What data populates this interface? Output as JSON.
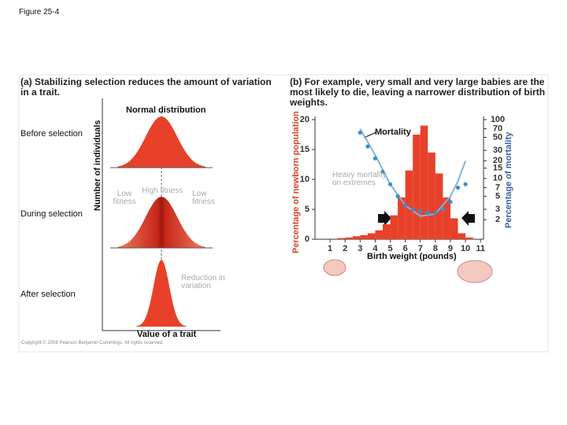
{
  "header": {
    "title": "Figure 25-4"
  },
  "panel_a": {
    "caption": "(a) Stabilizing selection reduces the amount of variation in a trait.",
    "normal_label": "Normal distribution",
    "stages": [
      "Before selection",
      "During selection",
      "After selection"
    ],
    "fitness": [
      "Low fitness",
      "High fitness",
      "Low fitness"
    ],
    "reduction": "Reduction in variation",
    "ylabel": "Number of individuals",
    "xlabel": "Value of a trait",
    "copyright": "Copyright © 2008 Pearson Benjamin Cummings. All rights reserved."
  },
  "chart_data": {
    "type": "histogram",
    "title": "(b) For example, very small and very large babies are the most likely to die, leaving a narrower distribution of birth weights.",
    "xlabel": "Birth weight (pounds)",
    "ylabel": "Percentage of newborn population",
    "y2label": "Percentage of mortality",
    "annotations": [
      "Mortality",
      "Heavy mortality on extremes"
    ],
    "bins": [
      1.5,
      2,
      2.5,
      3,
      3.5,
      4,
      4.5,
      5,
      5.5,
      6,
      6.5,
      7,
      7.5,
      8,
      8.5,
      9,
      9.5,
      10,
      10.5
    ],
    "values": [
      0.2,
      0.3,
      0.5,
      0.7,
      1,
      1.5,
      2.5,
      4,
      7,
      11.5,
      17.5,
      19,
      14.5,
      11,
      7,
      3.5,
      1,
      0.3
    ],
    "color": "#e8412a",
    "xlim": [
      0,
      11.2
    ],
    "xticks": [
      1,
      2,
      3,
      4,
      5,
      6,
      7,
      8,
      9,
      10,
      11
    ],
    "ylim": [
      0,
      20
    ],
    "yticks": [
      0,
      5,
      10,
      15,
      20
    ],
    "y2lim": [
      0.93,
      100
    ],
    "y2scale": "log",
    "y2ticks": [
      2,
      3,
      5,
      7,
      10,
      15,
      20,
      30,
      50,
      70,
      100
    ],
    "points": {
      "axis": "y2",
      "color": "#3a8fd0",
      "x": [
        3,
        3.5,
        4,
        4.5,
        5,
        5.5,
        6,
        6.5,
        7,
        7.5,
        8,
        8.5,
        9,
        9.5,
        10
      ],
      "values": [
        60,
        35,
        22,
        13,
        8,
        5,
        3.5,
        3,
        2.8,
        2.6,
        2.6,
        3,
        4,
        7,
        8
      ]
    },
    "curve": {
      "axis": "y2",
      "color": "#7fb3dc",
      "x": [
        3,
        4,
        5,
        6,
        7,
        8,
        9,
        9.5,
        10
      ],
      "values": [
        70,
        25,
        8,
        3.5,
        2.3,
        2.5,
        5,
        9,
        20
      ]
    }
  }
}
